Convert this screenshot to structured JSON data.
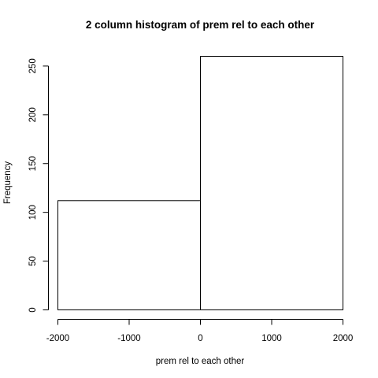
{
  "chart_data": {
    "type": "bar",
    "title": "2 column histogram of prem rel to each other",
    "xlabel": "prem rel to each other",
    "ylabel": "Frequency",
    "bins": [
      {
        "start": -2000,
        "end": 0,
        "count": 112
      },
      {
        "start": 0,
        "end": 2000,
        "count": 260
      }
    ],
    "xlim": [
      -2000,
      2000
    ],
    "ylim": [
      0,
      260
    ],
    "xticks": [
      -2000,
      -1000,
      0,
      1000,
      2000
    ],
    "xtick_labels": [
      "-2000",
      "-1000",
      "0",
      "1000",
      "2000"
    ],
    "yticks": [
      0,
      50,
      100,
      150,
      200,
      250
    ],
    "ytick_labels": [
      "0",
      "50",
      "100",
      "150",
      "200",
      "250"
    ],
    "grid": false,
    "legend": "none",
    "bar_fill": "#ffffff",
    "bar_stroke": "#000000"
  }
}
